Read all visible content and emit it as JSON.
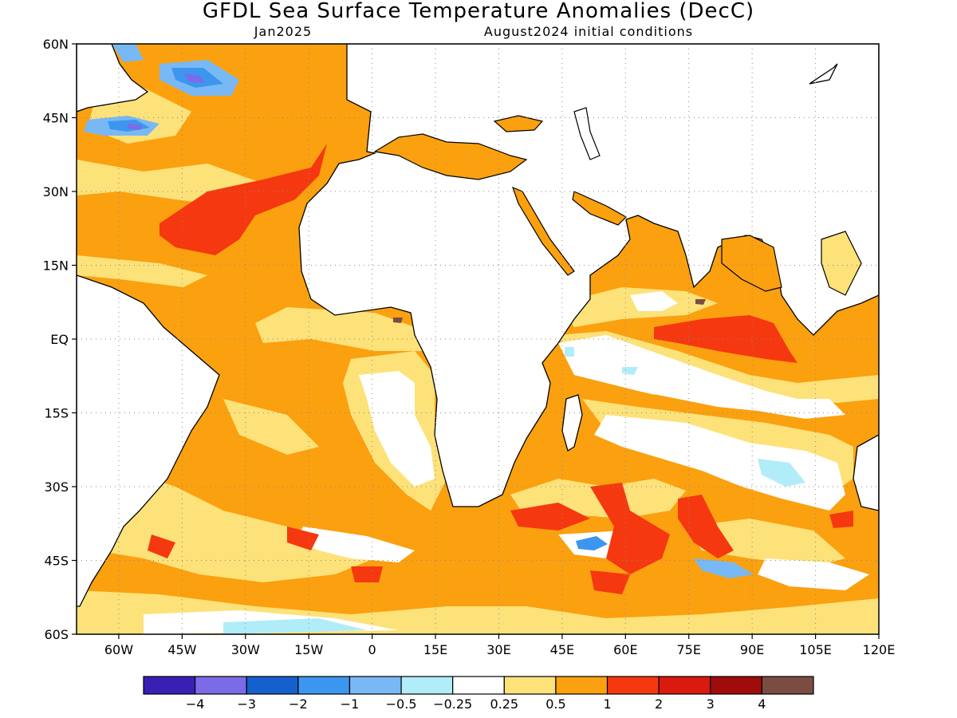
{
  "title": "GFDL Sea Surface Temperature Anomalies (DecC)",
  "subtitle_left": "Jan2025",
  "subtitle_right": "August2024 initial conditions",
  "map": {
    "lon_range": [
      -70,
      120
    ],
    "lat_range": [
      -60,
      60
    ],
    "lat_ticks": [
      {
        "value": 60,
        "label": "60N"
      },
      {
        "value": 45,
        "label": "45N"
      },
      {
        "value": 30,
        "label": "30N"
      },
      {
        "value": 15,
        "label": "15N"
      },
      {
        "value": 0,
        "label": "EQ"
      },
      {
        "value": -15,
        "label": "15S"
      },
      {
        "value": -30,
        "label": "30S"
      },
      {
        "value": -45,
        "label": "45S"
      },
      {
        "value": -60,
        "label": "60S"
      }
    ],
    "lon_ticks": [
      {
        "value": -60,
        "label": "60W"
      },
      {
        "value": -45,
        "label": "45W"
      },
      {
        "value": -30,
        "label": "30W"
      },
      {
        "value": -15,
        "label": "15W"
      },
      {
        "value": 0,
        "label": "0"
      },
      {
        "value": 15,
        "label": "15E"
      },
      {
        "value": 30,
        "label": "30E"
      },
      {
        "value": 45,
        "label": "45E"
      },
      {
        "value": 60,
        "label": "60E"
      },
      {
        "value": 75,
        "label": "75E"
      },
      {
        "value": 90,
        "label": "90E"
      },
      {
        "value": 105,
        "label": "105E"
      },
      {
        "value": 120,
        "label": "120E"
      }
    ],
    "grid": "dotted",
    "land_color": "#ffffff",
    "coast_color": "#000000"
  },
  "colorbar": {
    "colors": [
      "#3a1fb5",
      "#7b6be6",
      "#1560cc",
      "#3c96ef",
      "#78b9f5",
      "#b0edf8",
      "#ffffff",
      "#fde27a",
      "#fba00f",
      "#f5380f",
      "#d91a0e",
      "#a00c0c",
      "#7b4d42"
    ],
    "labels": [
      "−4",
      "−3",
      "−2",
      "−1",
      "−0.5",
      "−0.25",
      "0.25",
      "0.5",
      "1",
      "2",
      "3",
      "4"
    ]
  }
}
